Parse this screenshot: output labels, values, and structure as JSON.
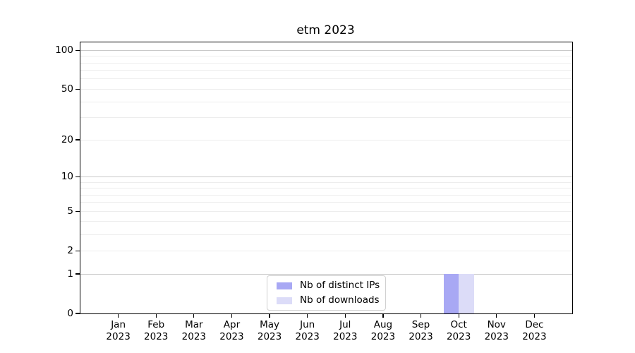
{
  "chart_data": {
    "type": "bar",
    "title": "etm 2023",
    "categories": [
      "Jan 2023",
      "Feb 2023",
      "Mar 2023",
      "Apr 2023",
      "May 2023",
      "Jun 2023",
      "Jul 2023",
      "Aug 2023",
      "Sep 2023",
      "Oct 2023",
      "Nov 2023",
      "Dec 2023"
    ],
    "series": [
      {
        "name": "Nb of distinct IPs",
        "color": "#a8a8f4",
        "values": [
          0,
          0,
          0,
          0,
          0,
          0,
          0,
          0,
          0,
          1,
          0,
          0
        ]
      },
      {
        "name": "Nb of downloads",
        "color": "#dcdcf8",
        "values": [
          0,
          0,
          0,
          0,
          0,
          0,
          0,
          0,
          0,
          1,
          0,
          0
        ]
      }
    ],
    "yscale": "log1p",
    "ylim": [
      0,
      100
    ],
    "yticks": [
      100,
      50,
      20,
      10,
      5,
      2,
      1,
      0
    ],
    "grid": {
      "major": [
        1,
        10,
        100
      ],
      "minor": [
        2,
        3,
        4,
        5,
        6,
        7,
        8,
        9,
        20,
        30,
        40,
        50,
        60,
        70,
        80,
        90
      ],
      "major_color": "#c9c9c9",
      "minor_color": "#ededed"
    },
    "legend_position": "lower-center-inside",
    "bar_width_fraction": 0.4,
    "axis_color": "#000000"
  }
}
